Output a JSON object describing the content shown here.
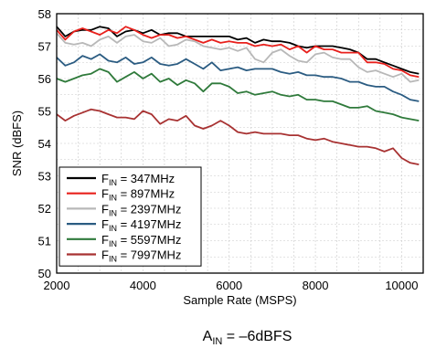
{
  "chart_data": {
    "type": "line",
    "xlabel": "Sample Rate (MSPS)",
    "ylabel": "SNR (dBFS)",
    "xlim": [
      2000,
      10500
    ],
    "ylim": [
      50,
      58
    ],
    "xticks": [
      2000,
      4000,
      6000,
      8000,
      10000
    ],
    "yticks": [
      50,
      51,
      52,
      53,
      54,
      55,
      56,
      57,
      58
    ],
    "grid": true,
    "legend_position": "bottom-left",
    "caption": {
      "main": "A",
      "sub": "IN",
      "rest": " = –6dBFS"
    },
    "x": [
      2000,
      2200,
      2400,
      2600,
      2800,
      3000,
      3200,
      3400,
      3600,
      3800,
      4000,
      4200,
      4400,
      4600,
      4800,
      5000,
      5200,
      5400,
      5600,
      5800,
      6000,
      6200,
      6400,
      6600,
      6800,
      7000,
      7200,
      7400,
      7600,
      7800,
      8000,
      8200,
      8400,
      8600,
      8800,
      9000,
      9200,
      9400,
      9600,
      9800,
      10000,
      10200,
      10400
    ],
    "series": [
      {
        "name_main": "F",
        "name_sub": "IN",
        "name_rest": " = 347MHz",
        "color": "#000000",
        "values": [
          57.6,
          57.3,
          57.45,
          57.5,
          57.5,
          57.6,
          57.55,
          57.3,
          57.45,
          57.5,
          57.4,
          57.5,
          57.35,
          57.4,
          57.4,
          57.3,
          57.3,
          57.3,
          57.3,
          57.3,
          57.3,
          57.2,
          57.25,
          57.1,
          57.2,
          57.15,
          57.15,
          57.1,
          57.0,
          56.95,
          57.0,
          57.0,
          57.0,
          56.95,
          56.9,
          56.8,
          56.6,
          56.6,
          56.5,
          56.4,
          56.3,
          56.2,
          56.15
        ]
      },
      {
        "name_main": "F",
        "name_sub": "IN",
        "name_rest": " = 897MHz",
        "color": "#e8201c",
        "values": [
          57.5,
          57.2,
          57.45,
          57.55,
          57.45,
          57.35,
          57.5,
          57.4,
          57.6,
          57.5,
          57.35,
          57.25,
          57.35,
          57.35,
          57.25,
          57.3,
          57.2,
          57.1,
          57.2,
          57.1,
          57.15,
          57.1,
          57.1,
          57.0,
          57.05,
          57.0,
          57.05,
          56.9,
          57.0,
          56.8,
          57.0,
          56.9,
          56.9,
          56.8,
          56.8,
          56.8,
          56.5,
          56.5,
          56.45,
          56.3,
          56.25,
          56.1,
          56.05
        ]
      },
      {
        "name_main": "F",
        "name_sub": "IN",
        "name_rest": " = 2397MHz",
        "color": "#b8b8b8",
        "values": [
          57.4,
          57.1,
          57.05,
          57.1,
          57.0,
          57.2,
          57.3,
          57.1,
          57.3,
          57.35,
          57.15,
          57.1,
          57.25,
          57.0,
          57.05,
          57.2,
          57.15,
          57.0,
          56.95,
          56.9,
          56.95,
          56.85,
          56.95,
          56.6,
          56.5,
          56.8,
          56.9,
          56.7,
          56.55,
          56.5,
          56.75,
          56.8,
          56.65,
          56.6,
          56.6,
          56.35,
          56.2,
          56.25,
          56.15,
          56.05,
          56.15,
          55.9,
          55.95
        ]
      },
      {
        "name_main": "F",
        "name_sub": "IN",
        "name_rest": " = 4197MHz",
        "color": "#2b5c82",
        "values": [
          56.65,
          56.4,
          56.5,
          56.7,
          56.6,
          56.75,
          56.55,
          56.5,
          56.65,
          56.45,
          56.5,
          56.65,
          56.45,
          56.4,
          56.45,
          56.6,
          56.45,
          56.3,
          56.5,
          56.25,
          56.3,
          56.35,
          56.25,
          56.3,
          56.3,
          56.3,
          56.2,
          56.15,
          56.2,
          56.1,
          56.1,
          56.05,
          56.05,
          56.0,
          55.9,
          55.9,
          55.8,
          55.75,
          55.75,
          55.6,
          55.5,
          55.35,
          55.3
        ]
      },
      {
        "name_main": "F",
        "name_sub": "IN",
        "name_rest": " = 5597MHz",
        "color": "#2f7a3b",
        "values": [
          56.0,
          55.9,
          56.0,
          56.1,
          56.15,
          56.3,
          56.2,
          55.9,
          56.05,
          56.2,
          56.0,
          56.15,
          55.9,
          56.0,
          55.8,
          55.95,
          55.85,
          55.6,
          55.85,
          55.85,
          55.75,
          55.55,
          55.6,
          55.5,
          55.55,
          55.6,
          55.5,
          55.45,
          55.5,
          55.35,
          55.35,
          55.3,
          55.3,
          55.2,
          55.1,
          55.1,
          55.15,
          55.0,
          54.95,
          54.9,
          54.8,
          54.75,
          54.7
        ]
      },
      {
        "name_main": "F",
        "name_sub": "IN",
        "name_rest": " = 7997MHz",
        "color": "#a83232",
        "values": [
          54.9,
          54.7,
          54.85,
          54.95,
          55.05,
          55.0,
          54.9,
          54.8,
          54.8,
          54.75,
          55.0,
          54.9,
          54.6,
          54.75,
          54.7,
          54.85,
          54.55,
          54.45,
          54.55,
          54.7,
          54.55,
          54.35,
          54.3,
          54.35,
          54.3,
          54.3,
          54.3,
          54.25,
          54.25,
          54.15,
          54.1,
          54.15,
          54.05,
          54.0,
          53.95,
          53.9,
          53.9,
          53.85,
          53.75,
          53.85,
          53.55,
          53.4,
          53.35
        ]
      }
    ]
  }
}
